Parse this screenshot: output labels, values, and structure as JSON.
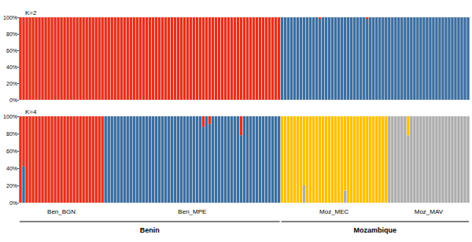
{
  "chart_data": [
    {
      "type": "bar",
      "title": "K=2",
      "stacked": true,
      "grid": false,
      "ylim": [
        0,
        100
      ],
      "yticks": [
        {
          "value": 0,
          "label": "0%"
        },
        {
          "value": 20,
          "label": "20%"
        },
        {
          "value": 40,
          "label": "40%"
        },
        {
          "value": 60,
          "label": "60%"
        },
        {
          "value": 80,
          "label": "80%"
        },
        {
          "value": 100,
          "label": "100%"
        }
      ],
      "categories": [
        null,
        null,
        null,
        null,
        null,
        null,
        null,
        null,
        null,
        null,
        null,
        null,
        null,
        null,
        null,
        null,
        null,
        null,
        null,
        null,
        null,
        null,
        null,
        null,
        null,
        null,
        null,
        null,
        null,
        null,
        null,
        null,
        null,
        null,
        null,
        null,
        null,
        null,
        null,
        null,
        null,
        null,
        null,
        null,
        null,
        null,
        null,
        null,
        null,
        null,
        null,
        null,
        null,
        null,
        null,
        null,
        null,
        null,
        null,
        null,
        null,
        null,
        null,
        null,
        null,
        null,
        null,
        null,
        null,
        null,
        null,
        null,
        null,
        null,
        null,
        null,
        null,
        null,
        null,
        null,
        null,
        null,
        null,
        null,
        null,
        null,
        null,
        null,
        null,
        null,
        null,
        null,
        null,
        null,
        null,
        null,
        null,
        null,
        null,
        null,
        null,
        null,
        null,
        null,
        null,
        null,
        null,
        null,
        null,
        null,
        null,
        null,
        null,
        null,
        null,
        null,
        null,
        null,
        null,
        null,
        null,
        null,
        null,
        null,
        null,
        null,
        null,
        null,
        null,
        null,
        null,
        null,
        null,
        null,
        null,
        null,
        null,
        null,
        null,
        null,
        null,
        null,
        null
      ],
      "series": [
        {
          "color": "#3c6ea0",
          "values": [
            0,
            0,
            0,
            0,
            0,
            0,
            0,
            0,
            0,
            0,
            0,
            0,
            0,
            0,
            0,
            0,
            0,
            0,
            0,
            0,
            0,
            0,
            0,
            0,
            0,
            0,
            0,
            0,
            0,
            0,
            0,
            0,
            0,
            0,
            0,
            0,
            0,
            0,
            0,
            0,
            0,
            0,
            0,
            0,
            0,
            0,
            0,
            0,
            0,
            0,
            0,
            0,
            0,
            0,
            0,
            0,
            0,
            0,
            0,
            0,
            0,
            0,
            0,
            0,
            0,
            0,
            0,
            0,
            0,
            0,
            0,
            0,
            0,
            0,
            0,
            0,
            0,
            0,
            0,
            0,
            0,
            0,
            0,
            100,
            100,
            100,
            100,
            100,
            100,
            100,
            100,
            100,
            100,
            100,
            100,
            98,
            100,
            100,
            100,
            100,
            100,
            100,
            100,
            100,
            100,
            100,
            100,
            100,
            100,
            100,
            98,
            100,
            100,
            100,
            100,
            100,
            100,
            100,
            100,
            100,
            100,
            100,
            100,
            100,
            100,
            100,
            100,
            100,
            100,
            100,
            100,
            100,
            100,
            100,
            100,
            100,
            100,
            100,
            100,
            100,
            100,
            100,
            100
          ]
        },
        {
          "color": "#e5301c",
          "values": [
            100,
            100,
            100,
            100,
            100,
            100,
            100,
            100,
            100,
            100,
            100,
            100,
            100,
            100,
            100,
            100,
            100,
            100,
            100,
            100,
            100,
            100,
            100,
            100,
            100,
            100,
            100,
            100,
            100,
            100,
            100,
            100,
            100,
            100,
            100,
            100,
            100,
            100,
            100,
            100,
            100,
            100,
            100,
            100,
            100,
            100,
            100,
            100,
            100,
            100,
            100,
            100,
            100,
            100,
            100,
            100,
            100,
            100,
            100,
            100,
            100,
            100,
            100,
            100,
            100,
            100,
            100,
            100,
            100,
            100,
            100,
            100,
            100,
            100,
            100,
            100,
            100,
            100,
            100,
            100,
            100,
            100,
            100,
            0,
            0,
            0,
            0,
            0,
            0,
            0,
            0,
            0,
            0,
            0,
            0,
            2,
            0,
            0,
            0,
            0,
            0,
            0,
            0,
            0,
            0,
            0,
            0,
            0,
            0,
            0,
            2,
            0,
            0,
            0,
            0,
            0,
            0,
            0,
            0,
            0,
            0,
            0,
            0,
            0,
            0,
            0,
            0,
            0,
            0,
            0,
            0,
            0,
            0,
            0,
            0,
            0,
            0,
            0,
            0,
            0,
            0,
            0,
            0
          ]
        }
      ]
    },
    {
      "type": "bar",
      "title": "K=4",
      "stacked": true,
      "grid": false,
      "ylim": [
        0,
        100
      ],
      "yticks": [
        {
          "value": 0,
          "label": "0%"
        },
        {
          "value": 20,
          "label": "20%"
        },
        {
          "value": 40,
          "label": "40%"
        },
        {
          "value": 60,
          "label": "60%"
        },
        {
          "value": 80,
          "label": "80%"
        },
        {
          "value": 100,
          "label": "100%"
        }
      ],
      "categories": [
        null,
        null,
        null,
        null,
        null,
        null,
        null,
        null,
        null,
        null,
        null,
        null,
        null,
        null,
        null,
        null,
        null,
        null,
        null,
        null,
        null,
        null,
        null,
        null,
        null,
        null,
        null,
        null,
        null,
        null,
        null,
        null,
        null,
        null,
        null,
        null,
        null,
        null,
        null,
        null,
        null,
        null,
        null,
        null,
        null,
        null,
        null,
        null,
        null,
        null,
        null,
        null,
        null,
        null,
        null,
        null,
        null,
        null,
        null,
        null,
        null,
        null,
        null,
        null,
        null,
        null,
        null,
        null,
        null,
        null,
        null,
        null,
        null,
        null,
        null,
        null,
        null,
        null,
        null,
        null,
        null,
        null,
        null,
        null,
        null,
        null,
        null,
        null,
        null,
        null,
        null,
        null,
        null,
        null,
        null,
        null,
        null,
        null,
        null,
        null,
        null,
        null,
        null,
        null,
        null,
        null,
        null,
        null,
        null,
        null,
        null,
        null,
        null,
        null,
        null,
        null,
        null,
        null,
        null,
        null,
        null,
        null,
        null,
        null,
        null,
        null,
        null,
        null,
        null,
        null,
        null,
        null,
        null,
        null,
        null,
        null,
        null,
        null,
        null,
        null,
        null,
        null,
        null
      ],
      "series": [
        {
          "color": "#adadad",
          "values": [
            0,
            0,
            0,
            0,
            0,
            0,
            0,
            0,
            0,
            0,
            0,
            0,
            0,
            0,
            0,
            0,
            0,
            0,
            0,
            0,
            0,
            0,
            0,
            0,
            0,
            0,
            0,
            0,
            0,
            0,
            0,
            0,
            0,
            0,
            0,
            0,
            0,
            0,
            0,
            0,
            0,
            0,
            0,
            0,
            0,
            0,
            0,
            0,
            0,
            0,
            0,
            0,
            0,
            0,
            0,
            0,
            0,
            0,
            0,
            0,
            0,
            0,
            0,
            0,
            0,
            0,
            0,
            0,
            0,
            0,
            0,
            0,
            0,
            0,
            0,
            0,
            0,
            0,
            0,
            0,
            0,
            0,
            0,
            0,
            0,
            0,
            0,
            0,
            0,
            0,
            20,
            0,
            0,
            0,
            0,
            0,
            0,
            0,
            0,
            0,
            0,
            0,
            0,
            14,
            0,
            0,
            0,
            0,
            0,
            0,
            0,
            0,
            0,
            0,
            0,
            0,
            0,
            100,
            100,
            100,
            100,
            100,
            100,
            78,
            100,
            100,
            100,
            100,
            100,
            100,
            100,
            100,
            100,
            100,
            100,
            100,
            100,
            100,
            100,
            100,
            100,
            100,
            100
          ]
        },
        {
          "color": "#3c6ea0",
          "values": [
            0,
            42,
            0,
            0,
            0,
            0,
            0,
            0,
            0,
            0,
            0,
            0,
            0,
            0,
            0,
            0,
            0,
            0,
            0,
            0,
            0,
            0,
            0,
            0,
            0,
            0,
            0,
            100,
            100,
            100,
            100,
            100,
            100,
            100,
            100,
            100,
            100,
            100,
            100,
            100,
            100,
            100,
            100,
            100,
            100,
            100,
            100,
            100,
            100,
            100,
            100,
            100,
            100,
            100,
            100,
            100,
            100,
            100,
            88,
            100,
            91,
            100,
            100,
            100,
            100,
            100,
            100,
            100,
            100,
            100,
            78,
            100,
            100,
            100,
            100,
            100,
            100,
            100,
            100,
            100,
            100,
            100,
            100,
            0,
            0,
            0,
            0,
            0,
            0,
            0,
            0,
            0,
            0,
            0,
            0,
            0,
            0,
            0,
            0,
            0,
            0,
            0,
            0,
            0,
            0,
            0,
            0,
            0,
            0,
            0,
            0,
            0,
            0,
            0,
            0,
            0,
            0,
            0,
            0,
            0,
            0,
            0,
            0,
            0,
            0,
            0,
            0,
            0,
            0,
            0,
            0,
            0,
            0,
            0,
            0,
            0,
            0,
            0,
            0,
            0,
            0,
            0,
            0
          ]
        },
        {
          "color": "#e5301c",
          "values": [
            100,
            58,
            100,
            100,
            100,
            100,
            100,
            100,
            100,
            100,
            100,
            100,
            100,
            100,
            100,
            100,
            100,
            100,
            100,
            100,
            100,
            100,
            100,
            100,
            100,
            100,
            100,
            0,
            0,
            0,
            0,
            0,
            0,
            0,
            0,
            0,
            0,
            0,
            0,
            0,
            0,
            0,
            0,
            0,
            0,
            0,
            0,
            0,
            0,
            0,
            0,
            0,
            0,
            0,
            0,
            0,
            0,
            0,
            12,
            0,
            9,
            0,
            0,
            0,
            0,
            0,
            0,
            0,
            0,
            0,
            22,
            0,
            0,
            0,
            0,
            0,
            0,
            0,
            0,
            0,
            0,
            0,
            0,
            0,
            0,
            0,
            0,
            0,
            0,
            0,
            0,
            0,
            0,
            0,
            0,
            0,
            0,
            0,
            0,
            0,
            0,
            0,
            0,
            0,
            0,
            0,
            0,
            0,
            0,
            0,
            0,
            0,
            0,
            0,
            0,
            0,
            0,
            0,
            0,
            0,
            0,
            0,
            0,
            0,
            0,
            0,
            0,
            0,
            0,
            0,
            0,
            0,
            0,
            0,
            0,
            0,
            0,
            0,
            0,
            0,
            0,
            0,
            0
          ]
        },
        {
          "color": "#fdc000",
          "values": [
            0,
            0,
            0,
            0,
            0,
            0,
            0,
            0,
            0,
            0,
            0,
            0,
            0,
            0,
            0,
            0,
            0,
            0,
            0,
            0,
            0,
            0,
            0,
            0,
            0,
            0,
            0,
            0,
            0,
            0,
            0,
            0,
            0,
            0,
            0,
            0,
            0,
            0,
            0,
            0,
            0,
            0,
            0,
            0,
            0,
            0,
            0,
            0,
            0,
            0,
            0,
            0,
            0,
            0,
            0,
            0,
            0,
            0,
            0,
            0,
            0,
            0,
            0,
            0,
            0,
            0,
            0,
            0,
            0,
            0,
            0,
            0,
            0,
            0,
            0,
            0,
            0,
            0,
            0,
            0,
            0,
            0,
            0,
            100,
            100,
            100,
            100,
            100,
            100,
            100,
            80,
            100,
            100,
            100,
            100,
            100,
            100,
            100,
            100,
            100,
            100,
            100,
            100,
            86,
            100,
            100,
            100,
            100,
            100,
            100,
            100,
            100,
            100,
            100,
            100,
            100,
            100,
            0,
            0,
            0,
            0,
            0,
            0,
            22,
            0,
            0,
            0,
            0,
            0,
            0,
            0,
            0,
            0,
            0,
            0,
            0,
            0,
            0,
            0,
            0,
            0,
            0,
            0
          ]
        }
      ]
    }
  ],
  "groups": [
    {
      "label": "Ben_BGN",
      "size": 27
    },
    {
      "label": "Ben_MPE",
      "size": 56
    },
    {
      "label": "Moz_MEC",
      "size": 34
    },
    {
      "label": "Moz_MAV",
      "size": 26
    }
  ],
  "regions": [
    {
      "label": "Benin",
      "group_count": 2
    },
    {
      "label": "Mozambique",
      "group_count": 2
    }
  ]
}
